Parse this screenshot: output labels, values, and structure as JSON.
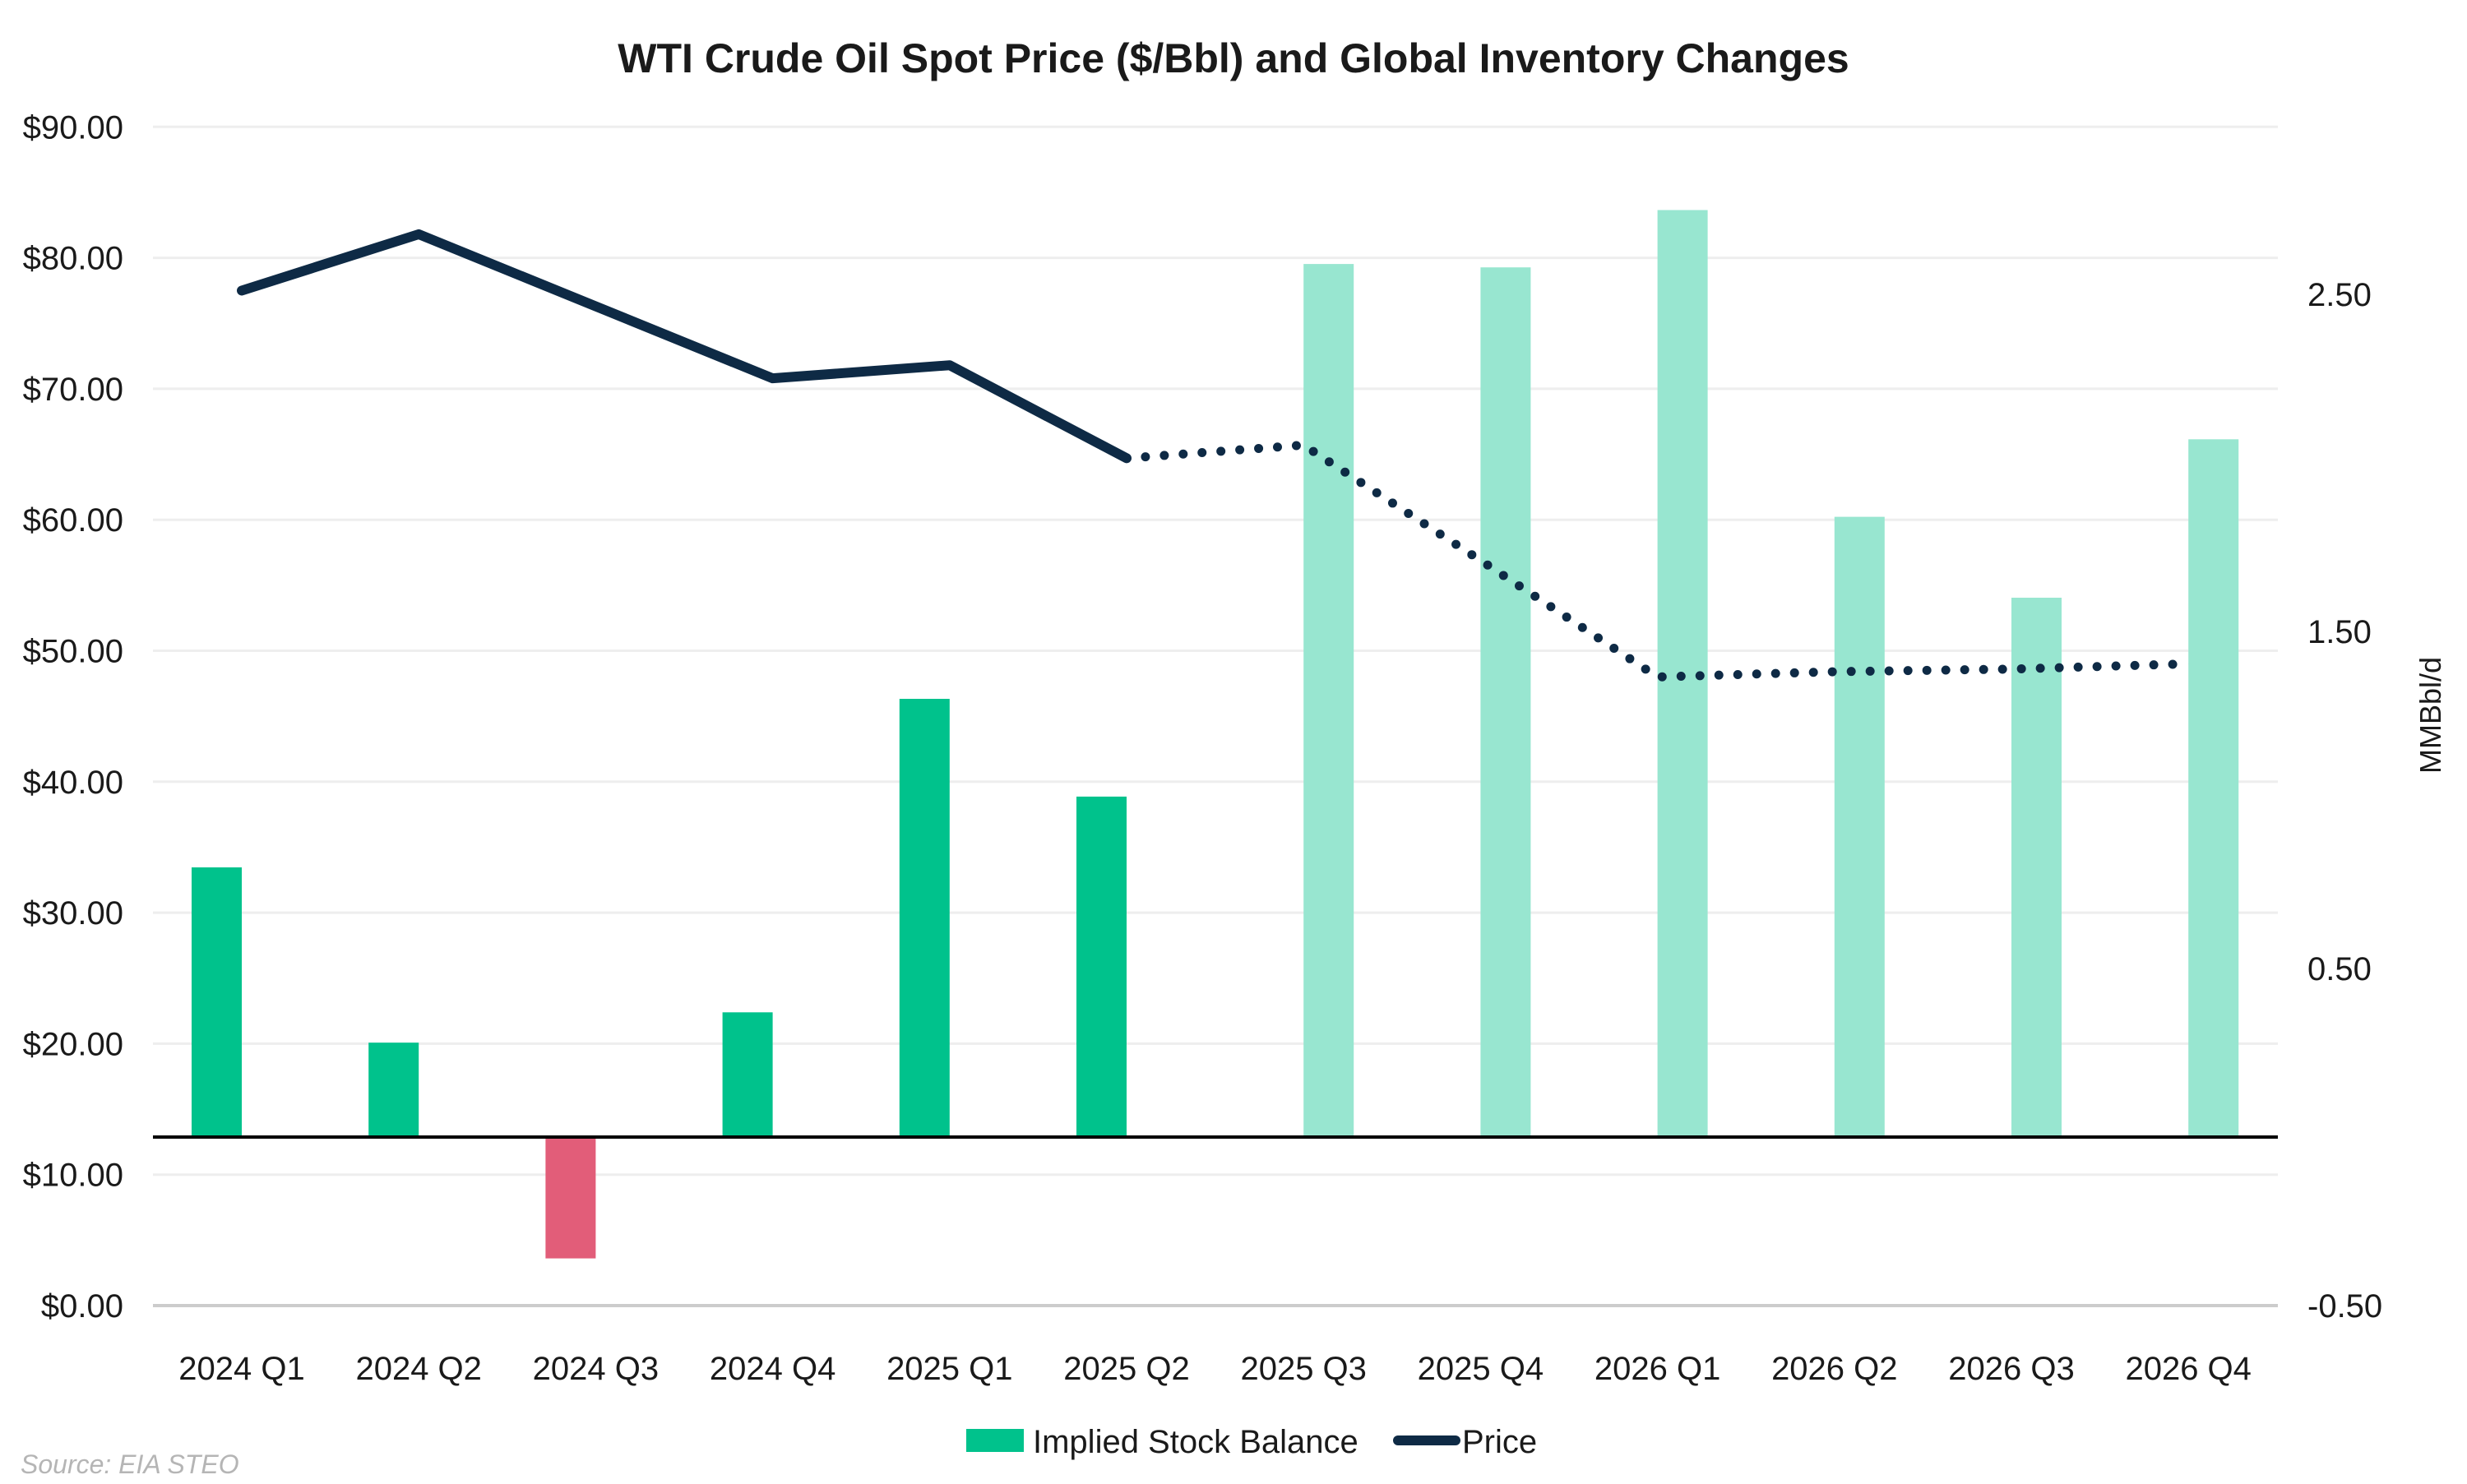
{
  "chart_data": {
    "type": "bar+line",
    "title": "WTI Crude Oil Spot Price ($/Bbl) and Global Inventory Changes",
    "source": "Source: EIA STEO",
    "categories": [
      "2024 Q1",
      "2024 Q2",
      "2024 Q3",
      "2024 Q4",
      "2025 Q1",
      "2025 Q2",
      "2025 Q3",
      "2025 Q4",
      "2026 Q1",
      "2026 Q2",
      "2026 Q3",
      "2026 Q4"
    ],
    "left_axis": {
      "label": "",
      "range": [
        0,
        90
      ],
      "ticks": [
        "$0.00",
        "$10.00",
        "$20.00",
        "$30.00",
        "$40.00",
        "$50.00",
        "$60.00",
        "$70.00",
        "$80.00",
        "$90.00"
      ]
    },
    "right_axis": {
      "label": "MMBbl/d",
      "range": [
        -0.5,
        3.0
      ],
      "ticks": [
        "-0.50",
        "0.50",
        "1.50",
        "2.50"
      ],
      "tick_values": [
        -0.5,
        0.5,
        1.5,
        2.5
      ]
    },
    "grid": true,
    "legend_placement": "bottom",
    "series": [
      {
        "name": "Implied Stock Balance",
        "type": "bar",
        "axis": "right",
        "values": [
          0.8,
          0.28,
          -0.36,
          0.37,
          1.3,
          1.01,
          2.59,
          2.58,
          2.75,
          1.84,
          1.6,
          2.07
        ],
        "forecast_from": "2025 Q3"
      },
      {
        "name": "Price",
        "type": "line",
        "axis": "left",
        "values": [
          77.5,
          81.8,
          76.3,
          70.8,
          71.8,
          64.7,
          65.7,
          56.9,
          48.0,
          48.4,
          48.6,
          49.0
        ],
        "forecast_from": "2025 Q2",
        "forecast_style": "dotted"
      }
    ],
    "colors": {
      "positive": "#00C28C",
      "negative": "#E25D79",
      "forecast": "#98E6D0",
      "line": "#0E2A45",
      "zero_line": "#000000",
      "grid": "#EEEEEE"
    }
  }
}
